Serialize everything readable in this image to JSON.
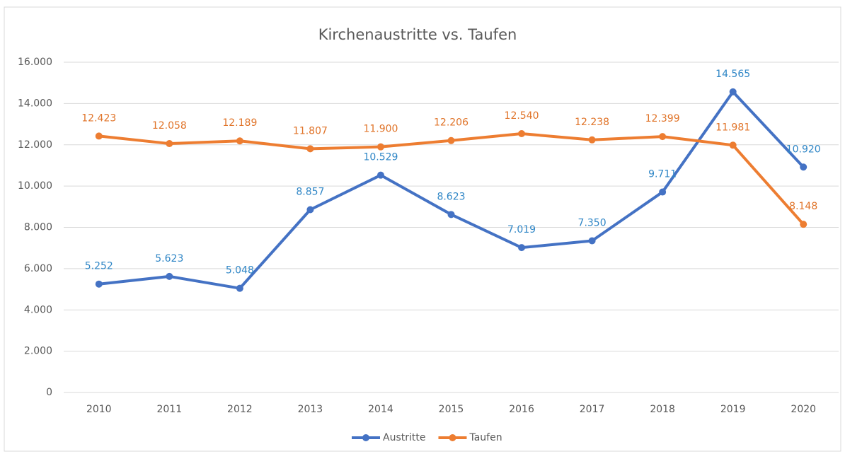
{
  "chart_data": {
    "type": "line",
    "title": "Kirchenaustritte vs. Taufen",
    "categories": [
      "2010",
      "2011",
      "2012",
      "2013",
      "2014",
      "2015",
      "2016",
      "2017",
      "2018",
      "2019",
      "2020"
    ],
    "series": [
      {
        "name": "Austritte",
        "color": "#4472c4",
        "label_color": "#2f86c6",
        "values": [
          5252,
          5623,
          5048,
          8857,
          10529,
          8623,
          7019,
          7350,
          9711,
          14565,
          10920
        ],
        "value_labels": [
          "5.252",
          "5.623",
          "5.048",
          "8.857",
          "10.529",
          "8.623",
          "7.019",
          "7.350",
          "9.711",
          "14.565",
          "10.920"
        ]
      },
      {
        "name": "Taufen",
        "color": "#ed7d31",
        "label_color": "#e07328",
        "values": [
          12423,
          12058,
          12189,
          11807,
          11900,
          12206,
          12540,
          12238,
          12399,
          11981,
          8148
        ],
        "value_labels": [
          "12.423",
          "12.058",
          "12.189",
          "11.807",
          "11.900",
          "12.206",
          "12.540",
          "12.238",
          "12.399",
          "11.981",
          "8.148"
        ]
      }
    ],
    "ylim": [
      0,
      16000
    ],
    "yticks": [
      0,
      {
        "value": 2000,
        "label": "2.000"
      },
      {
        "value": 4000,
        "label": "4.000"
      },
      {
        "value": 6000,
        "label": "6.000"
      },
      {
        "value": 8000,
        "label": "8.000"
      },
      {
        "value": 10000,
        "label": "10.000"
      },
      {
        "value": 12000,
        "label": "12.000"
      },
      {
        "value": 14000,
        "label": "14.000"
      },
      {
        "value": 16000,
        "label": "16.000"
      }
    ],
    "grid": true,
    "legend": "bottom"
  }
}
